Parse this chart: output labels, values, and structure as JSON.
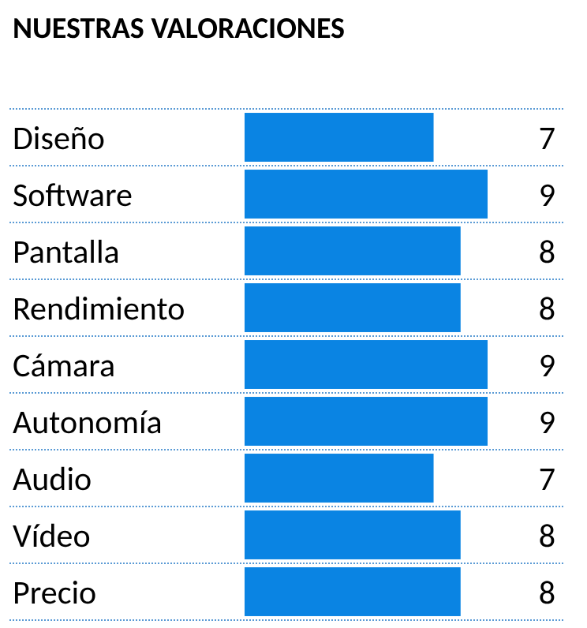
{
  "chart_data": {
    "type": "bar",
    "orientation": "horizontal",
    "title": "NUESTRAS VALORACIONES",
    "categories": [
      "Diseño",
      "Software",
      "Pantalla",
      "Rendimiento",
      "Cámara",
      "Autonomía",
      "Audio",
      "Vídeo",
      "Precio"
    ],
    "values": [
      7,
      9,
      8,
      8,
      9,
      9,
      7,
      8,
      8
    ],
    "color": "#0a84e3",
    "data_labels": true,
    "grid": true
  }
}
